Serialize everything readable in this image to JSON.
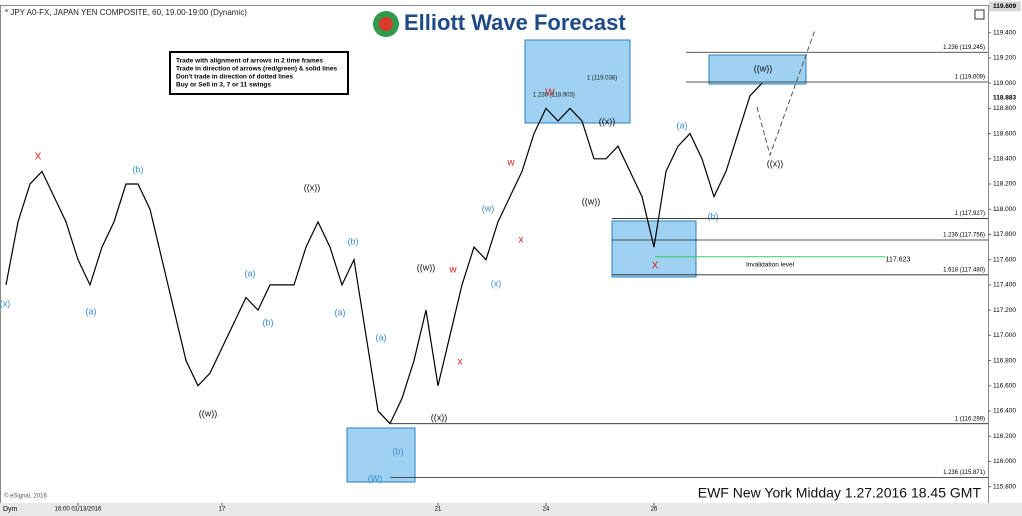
{
  "header": {
    "symbol": "* JPY A0-FX, JAPAN YEN COMPOSITE, 60, 19.00-19:00 (Dynamic)",
    "logo": "Elliott Wave Forecast"
  },
  "info_box": [
    "Trade with alignment of arrows in 2 time frames",
    "Trade in direction of arrows (red/green) & solid lines",
    "Don't trade in direction of dotted lines",
    "Buy or Sell in 3, 7 or 11 swings"
  ],
  "footer": {
    "caption": "EWF New York Midday 1.27.2016 18.45 GMT",
    "copyright": "© eSignal, 2016",
    "mode": "Dym"
  },
  "chart_data": {
    "type": "line",
    "color": "#000000",
    "categories": [
      null,
      null,
      null,
      null,
      null,
      null,
      "16:00 01/13/2016",
      null,
      null,
      null,
      null,
      null,
      null,
      null,
      null,
      null,
      null,
      null,
      "17",
      null,
      null,
      null,
      null,
      null,
      null,
      null,
      null,
      null,
      null,
      null,
      null,
      null,
      null,
      null,
      null,
      null,
      "21",
      null,
      null,
      null,
      null,
      null,
      null,
      null,
      null,
      "24",
      null,
      null,
      null,
      null,
      null,
      null,
      null,
      null,
      "26",
      null,
      null,
      null,
      null,
      null,
      null,
      null,
      null,
      null
    ],
    "values": [
      117.4,
      117.9,
      118.2,
      118.3,
      118.1,
      117.9,
      117.6,
      117.4,
      117.7,
      117.9,
      118.2,
      118.2,
      118.0,
      117.6,
      117.2,
      116.8,
      116.6,
      116.7,
      116.9,
      117.1,
      117.3,
      117.2,
      117.4,
      117.4,
      117.4,
      117.7,
      117.9,
      117.7,
      117.4,
      117.6,
      117.0,
      116.4,
      116.3,
      116.5,
      116.8,
      117.2,
      116.6,
      117.0,
      117.4,
      117.7,
      117.6,
      117.9,
      118.1,
      118.3,
      118.6,
      118.8,
      118.7,
      118.8,
      118.7,
      118.4,
      118.4,
      118.5,
      118.3,
      118.1,
      117.7,
      118.3,
      118.5,
      118.6,
      118.4,
      118.1,
      118.3,
      118.6,
      118.9,
      119.0
    ],
    "ylim": [
      115.67,
      119.62
    ],
    "yticks": [
      {
        "value": 115.8,
        "label": "115.800"
      },
      {
        "value": 116.0,
        "label": "116.000"
      },
      {
        "value": 116.2,
        "label": "116.200"
      },
      {
        "value": 116.4,
        "label": "116.400"
      },
      {
        "value": 116.6,
        "label": "116.600"
      },
      {
        "value": 116.8,
        "label": "116.800"
      },
      {
        "value": 117.0,
        "label": "117.000"
      },
      {
        "value": 117.2,
        "label": "117.200"
      },
      {
        "value": 117.4,
        "label": "117.400"
      },
      {
        "value": 117.6,
        "label": "117.600"
      },
      {
        "value": 117.8,
        "label": "117.800"
      },
      {
        "value": 118.0,
        "label": "118.000"
      },
      {
        "value": 118.2,
        "label": "118.200"
      },
      {
        "value": 118.4,
        "label": "118.400"
      },
      {
        "value": 118.6,
        "label": "118.600"
      },
      {
        "value": 118.8,
        "label": "118.800"
      },
      {
        "value": 119.0,
        "label": "119.000"
      },
      {
        "value": 119.2,
        "label": "119.200"
      },
      {
        "value": 119.4,
        "label": "119.400"
      }
    ],
    "price_markers": [
      {
        "value": 119.609,
        "label": "119.609"
      },
      {
        "value": 118.883,
        "label": "118.883"
      }
    ],
    "fib_levels": [
      {
        "value": 119.245,
        "label": "1.236 (119.245)"
      },
      {
        "value": 119.009,
        "label": "1 (119.009)"
      },
      {
        "value": 117.927,
        "label": "1 (117.927)"
      },
      {
        "value": 117.756,
        "label": "1.236 (117.756)"
      },
      {
        "value": 117.48,
        "label": "1.618 (117.480)"
      },
      {
        "value": 116.299,
        "label": "1 (116.299)"
      },
      {
        "value": 115.871,
        "label": "1.236 (115.871)"
      }
    ],
    "invalidation": {
      "value": 117.623,
      "label": "117.623",
      "text": "Invalidation level",
      "color": "#33cc66"
    },
    "annotations": [
      "X",
      "(b)",
      "(a)",
      "(x)",
      "((x))",
      "((w))",
      "(a)",
      "(b)",
      "(b)",
      "(a)",
      "(a)",
      "(b)",
      "(W)",
      "((w))",
      "((x))",
      "w",
      "x",
      "(w)",
      "(x)",
      "w",
      "x",
      "W",
      "((x))",
      "((w))",
      "(a)",
      "(b)",
      "X",
      "((w))",
      "((x))",
      "1 (119.038)",
      "1.236 (118.903)"
    ]
  }
}
